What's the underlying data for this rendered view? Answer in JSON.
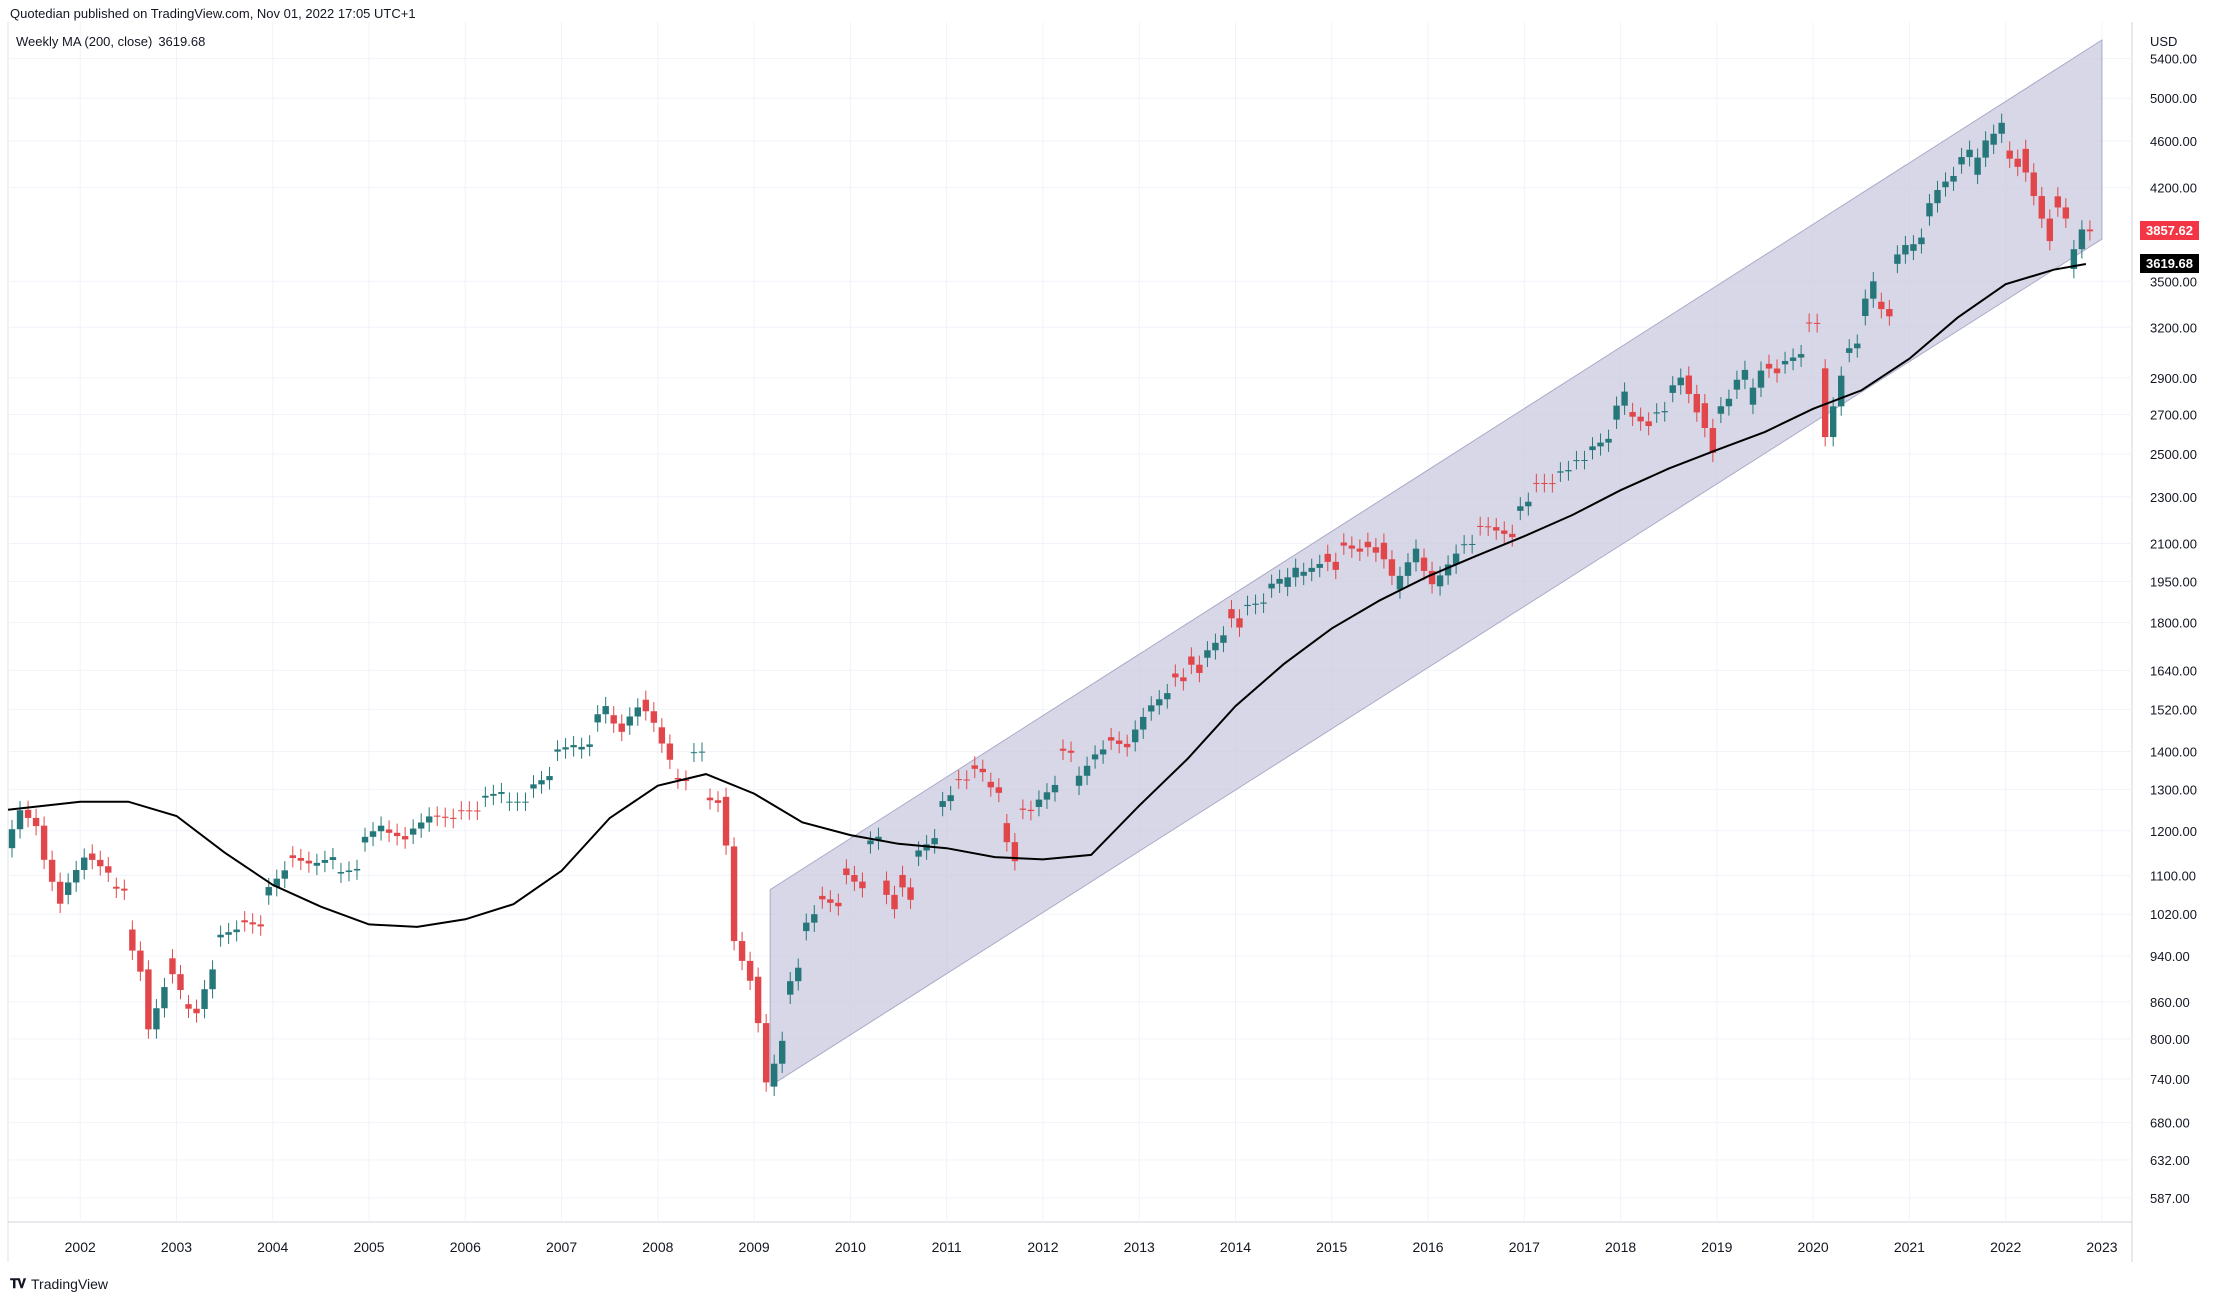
{
  "header": {
    "published": "Quotedian published on TradingView.com, Nov 01, 2022 17:05 UTC+1"
  },
  "indicator": {
    "label": "Weekly MA (200, close)",
    "value": "3619.68"
  },
  "footer": {
    "brand": "TradingView"
  },
  "colors": {
    "up": "#26777a",
    "down": "#e0464a",
    "channel": "#c7c8de",
    "ma": "#000000",
    "grid": "#f0f3fa"
  },
  "chart_data": {
    "type": "candlestick",
    "title": "",
    "currency": "USD",
    "scale": "log",
    "x_labels": [
      "2002",
      "2003",
      "2004",
      "2005",
      "2006",
      "2007",
      "2008",
      "2009",
      "2010",
      "2011",
      "2012",
      "2013",
      "2014",
      "2015",
      "2016",
      "2017",
      "2018",
      "2019",
      "2020",
      "2021",
      "2022",
      "2023"
    ],
    "y_ticks": [
      587,
      632,
      680,
      740,
      800,
      860,
      940,
      1020,
      1100,
      1200,
      1300,
      1400,
      1520,
      1640,
      1800,
      1950,
      2100,
      2300,
      2500,
      2700,
      2900,
      3200,
      3500,
      4200,
      4600,
      5000,
      5400
    ],
    "y_tick_labels": [
      "587.00",
      "632.00",
      "680.00",
      "740.00",
      "800.00",
      "860.00",
      "940.00",
      "1020.00",
      "1100.00",
      "1200.00",
      "1300.00",
      "1400.00",
      "1520.00",
      "1640.00",
      "1800.00",
      "1950.00",
      "2100.00",
      "2300.00",
      "2500.00",
      "2700.00",
      "2900.00",
      "3200.00",
      "3500.00",
      "4200.00",
      "4600.00",
      "5000.00",
      "5400.00"
    ],
    "ylim": [
      560,
      5800
    ],
    "xlim": [
      "2001-04",
      "2023-03"
    ],
    "last_price": {
      "value": 3857.62,
      "label": "3857.62"
    },
    "ma_value": {
      "value": 3619.68,
      "label": "3619.68"
    },
    "channel": {
      "start": "2009-03",
      "end": "2023-01",
      "lower_start": 730,
      "upper_start": 1070,
      "lower_end": 3800,
      "upper_end": 5600
    },
    "series": [
      {
        "name": "Weekly MA (200, close)",
        "type": "line",
        "points": [
          [
            "2001-04",
            1250
          ],
          [
            "2002-01",
            1270
          ],
          [
            "2002-07",
            1270
          ],
          [
            "2003-01",
            1235
          ],
          [
            "2003-07",
            1150
          ],
          [
            "2004-01",
            1080
          ],
          [
            "2004-07",
            1035
          ],
          [
            "2005-01",
            1000
          ],
          [
            "2005-07",
            995
          ],
          [
            "2006-01",
            1010
          ],
          [
            "2006-07",
            1040
          ],
          [
            "2007-01",
            1110
          ],
          [
            "2007-07",
            1230
          ],
          [
            "2008-01",
            1310
          ],
          [
            "2008-07",
            1340
          ],
          [
            "2009-01",
            1290
          ],
          [
            "2009-07",
            1220
          ],
          [
            "2010-01",
            1190
          ],
          [
            "2010-07",
            1170
          ],
          [
            "2011-01",
            1160
          ],
          [
            "2011-07",
            1140
          ],
          [
            "2012-01",
            1135
          ],
          [
            "2012-07",
            1145
          ],
          [
            "2013-01",
            1260
          ],
          [
            "2013-07",
            1380
          ],
          [
            "2014-01",
            1530
          ],
          [
            "2014-07",
            1660
          ],
          [
            "2015-01",
            1780
          ],
          [
            "2015-07",
            1880
          ],
          [
            "2016-01",
            1970
          ],
          [
            "2016-07",
            2050
          ],
          [
            "2017-01",
            2130
          ],
          [
            "2017-07",
            2220
          ],
          [
            "2018-01",
            2330
          ],
          [
            "2018-07",
            2430
          ],
          [
            "2019-01",
            2520
          ],
          [
            "2019-07",
            2610
          ],
          [
            "2020-01",
            2730
          ],
          [
            "2020-07",
            2830
          ],
          [
            "2021-01",
            3010
          ],
          [
            "2021-07",
            3260
          ],
          [
            "2022-01",
            3480
          ],
          [
            "2022-07",
            3580
          ],
          [
            "2022-11",
            3619.68
          ]
        ]
      },
      {
        "name": "monthly",
        "type": "candles",
        "points": [
          [
            "2001-04",
            1160,
            1249
          ],
          [
            "2001-06",
            1250,
            1211
          ],
          [
            "2001-08",
            1212,
            1134
          ],
          [
            "2001-09",
            1134,
            1041
          ],
          [
            "2001-11",
            1059,
            1139
          ],
          [
            "2002-02",
            1148,
            1106
          ],
          [
            "2002-05",
            1076,
            1068
          ],
          [
            "2002-07",
            990,
            912
          ],
          [
            "2002-09",
            916,
            815
          ],
          [
            "2002-10",
            815,
            885
          ],
          [
            "2002-12",
            936,
            880
          ],
          [
            "2003-02",
            856,
            841
          ],
          [
            "2003-04",
            848,
            916
          ],
          [
            "2003-06",
            975,
            990
          ],
          [
            "2003-09",
            1008,
            996
          ],
          [
            "2003-12",
            1058,
            1111
          ],
          [
            "2004-03",
            1144,
            1126
          ],
          [
            "2004-06",
            1121,
            1140
          ],
          [
            "2004-09",
            1104,
            1114
          ],
          [
            "2004-12",
            1173,
            1212
          ],
          [
            "2005-03",
            1203,
            1180
          ],
          [
            "2005-06",
            1191,
            1234
          ],
          [
            "2005-09",
            1236,
            1228
          ],
          [
            "2005-12",
            1249,
            1248
          ],
          [
            "2006-03",
            1280,
            1294
          ],
          [
            "2006-06",
            1270,
            1270
          ],
          [
            "2006-09",
            1303,
            1335
          ],
          [
            "2006-12",
            1400,
            1418
          ],
          [
            "2007-03",
            1406,
            1420
          ],
          [
            "2007-05",
            1482,
            1530
          ],
          [
            "2007-07",
            1503,
            1455
          ],
          [
            "2007-09",
            1473,
            1526
          ],
          [
            "2007-11",
            1549,
            1481
          ],
          [
            "2008-01",
            1468,
            1378
          ],
          [
            "2008-03",
            1330,
            1322
          ],
          [
            "2008-05",
            1397,
            1400
          ],
          [
            "2008-07",
            1280,
            1267
          ],
          [
            "2008-09",
            1282,
            1166
          ],
          [
            "2008-10",
            1164,
            968
          ],
          [
            "2008-11",
            968,
            896
          ],
          [
            "2009-01",
            903,
            825
          ],
          [
            "2009-02",
            825,
            735
          ],
          [
            "2009-03",
            729,
            797
          ],
          [
            "2009-05",
            872,
            919
          ],
          [
            "2009-07",
            987,
            1020
          ],
          [
            "2009-09",
            1057,
            1036
          ],
          [
            "2009-12",
            1115,
            1073
          ],
          [
            "2010-03",
            1169,
            1186
          ],
          [
            "2010-05",
            1089,
            1030
          ],
          [
            "2010-07",
            1101,
            1049
          ],
          [
            "2010-09",
            1141,
            1183
          ],
          [
            "2010-12",
            1257,
            1286
          ],
          [
            "2011-02",
            1327,
            1325
          ],
          [
            "2011-04",
            1363,
            1345
          ],
          [
            "2011-06",
            1320,
            1292
          ],
          [
            "2011-08",
            1218,
            1131
          ],
          [
            "2011-10",
            1253,
            1247
          ],
          [
            "2011-12",
            1257,
            1312
          ],
          [
            "2012-03",
            1408,
            1397
          ],
          [
            "2012-05",
            1310,
            1362
          ],
          [
            "2012-07",
            1379,
            1406
          ],
          [
            "2012-09",
            1440,
            1412
          ],
          [
            "2012-12",
            1426,
            1498
          ],
          [
            "2013-02",
            1514,
            1569
          ],
          [
            "2013-05",
            1630,
            1606
          ],
          [
            "2013-07",
            1685,
            1632
          ],
          [
            "2013-09",
            1681,
            1756
          ],
          [
            "2013-12",
            1848,
            1783
          ],
          [
            "2014-02",
            1859,
            1872
          ],
          [
            "2014-05",
            1924,
            1960
          ],
          [
            "2014-07",
            1930,
            2003
          ],
          [
            "2014-09",
            1972,
            2018
          ],
          [
            "2014-12",
            2058,
            1995
          ],
          [
            "2015-02",
            2104,
            2067
          ],
          [
            "2015-05",
            2107,
            2063
          ],
          [
            "2015-07",
            2103,
            1972
          ],
          [
            "2015-09",
            1920,
            2079
          ],
          [
            "2015-12",
            2043,
            1940
          ],
          [
            "2016-02",
            1932,
            2059
          ],
          [
            "2016-05",
            2096,
            2098
          ],
          [
            "2016-07",
            2173,
            2170
          ],
          [
            "2016-09",
            2168,
            2126
          ],
          [
            "2016-12",
            2238,
            2278
          ],
          [
            "2017-02",
            2363,
            2362
          ],
          [
            "2017-05",
            2411,
            2423
          ],
          [
            "2017-07",
            2470,
            2471
          ],
          [
            "2017-09",
            2519,
            2575
          ],
          [
            "2017-12",
            2673,
            2823
          ],
          [
            "2018-02",
            2713,
            2640
          ],
          [
            "2018-05",
            2705,
            2718
          ],
          [
            "2018-07",
            2816,
            2901
          ],
          [
            "2018-09",
            2913,
            2711
          ],
          [
            "2018-11",
            2760,
            2506
          ],
          [
            "2019-01",
            2704,
            2784
          ],
          [
            "2019-03",
            2834,
            2945
          ],
          [
            "2019-05",
            2752,
            2941
          ],
          [
            "2019-07",
            2980,
            2926
          ],
          [
            "2019-09",
            2977,
            3037
          ],
          [
            "2019-12",
            3230,
            3225
          ],
          [
            "2020-02",
            2954,
            2584
          ],
          [
            "2020-03",
            2584,
            2912
          ],
          [
            "2020-05",
            3044,
            3100
          ],
          [
            "2020-07",
            3271,
            3500
          ],
          [
            "2020-09",
            3363,
            3269
          ],
          [
            "2020-11",
            3621,
            3756
          ],
          [
            "2021-01",
            3714,
            3811
          ],
          [
            "2021-03",
            3972,
            4181
          ],
          [
            "2021-05",
            4204,
            4297
          ],
          [
            "2021-07",
            4395,
            4522
          ],
          [
            "2021-09",
            4307,
            4605
          ],
          [
            "2021-11",
            4567,
            4766
          ],
          [
            "2022-01",
            4515,
            4374
          ],
          [
            "2022-03",
            4530,
            4132
          ],
          [
            "2022-05",
            4132,
            3785
          ],
          [
            "2022-07",
            4130,
            3955
          ],
          [
            "2022-09",
            3585,
            3872
          ],
          [
            "2022-11",
            3871,
            3858
          ]
        ]
      }
    ]
  }
}
